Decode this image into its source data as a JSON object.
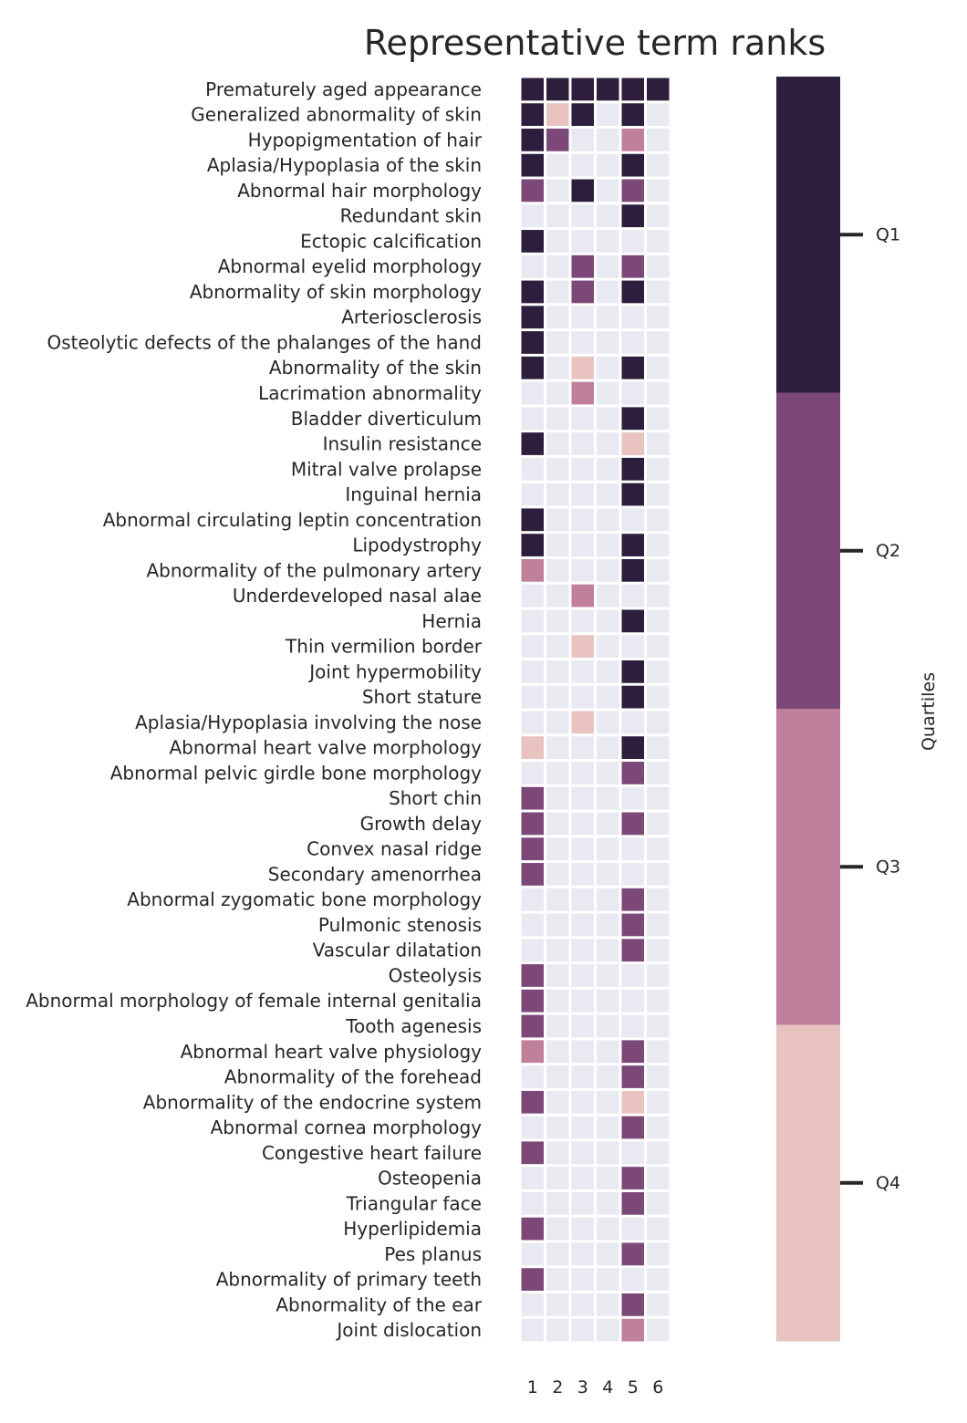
{
  "chart_data": {
    "type": "heatmap",
    "title": "Representative term ranks",
    "xlabel": "",
    "ylabel": "",
    "columns": [
      "1",
      "2",
      "3",
      "4",
      "5",
      "6"
    ],
    "rows": [
      "Prematurely aged appearance",
      "Generalized abnormality of skin",
      "Hypopigmentation of hair",
      "Aplasia/Hypoplasia of the skin",
      "Abnormal hair morphology",
      "Redundant skin",
      "Ectopic calcification",
      "Abnormal eyelid morphology",
      "Abnormality of skin morphology",
      "Arteriosclerosis",
      "Osteolytic defects of the phalanges of the hand",
      "Abnormality of the skin",
      "Lacrimation abnormality",
      "Bladder diverticulum",
      "Insulin resistance",
      "Mitral valve prolapse",
      "Inguinal hernia",
      "Abnormal circulating leptin concentration",
      "Lipodystrophy",
      "Abnormality of the pulmonary artery",
      "Underdeveloped nasal alae",
      "Hernia",
      "Thin vermilion border",
      "Joint hypermobility",
      "Short stature",
      "Aplasia/Hypoplasia involving the nose",
      "Abnormal heart valve morphology",
      "Abnormal pelvic girdle bone morphology",
      "Short chin",
      "Growth delay",
      "Convex nasal ridge",
      "Secondary amenorrhea",
      "Abnormal zygomatic bone morphology",
      "Pulmonic stenosis",
      "Vascular dilatation",
      "Osteolysis",
      "Abnormal morphology of female internal genitalia",
      "Tooth agenesis",
      "Abnormal heart valve physiology",
      "Abnormality of the forehead",
      "Abnormality of the endocrine system",
      "Abnormal cornea morphology",
      "Congestive heart failure",
      "Osteopenia",
      "Triangular face",
      "Hyperlipidemia",
      "Pes planus",
      "Abnormality of primary teeth",
      "Abnormality of the ear",
      "Joint dislocation"
    ],
    "values": [
      [
        1,
        1,
        1,
        1,
        1,
        1
      ],
      [
        1,
        4,
        1,
        0,
        1,
        0
      ],
      [
        1,
        2,
        0,
        0,
        3,
        0
      ],
      [
        1,
        0,
        0,
        0,
        1,
        0
      ],
      [
        2,
        0,
        1,
        0,
        2,
        0
      ],
      [
        0,
        0,
        0,
        0,
        1,
        0
      ],
      [
        1,
        0,
        0,
        0,
        0,
        0
      ],
      [
        0,
        0,
        2,
        0,
        2,
        0
      ],
      [
        1,
        0,
        2,
        0,
        1,
        0
      ],
      [
        1,
        0,
        0,
        0,
        0,
        0
      ],
      [
        1,
        0,
        0,
        0,
        0,
        0
      ],
      [
        1,
        0,
        4,
        0,
        1,
        0
      ],
      [
        0,
        0,
        3,
        0,
        0,
        0
      ],
      [
        0,
        0,
        0,
        0,
        1,
        0
      ],
      [
        1,
        0,
        0,
        0,
        4,
        0
      ],
      [
        0,
        0,
        0,
        0,
        1,
        0
      ],
      [
        0,
        0,
        0,
        0,
        1,
        0
      ],
      [
        1,
        0,
        0,
        0,
        0,
        0
      ],
      [
        1,
        0,
        0,
        0,
        1,
        0
      ],
      [
        3,
        0,
        0,
        0,
        1,
        0
      ],
      [
        0,
        0,
        3,
        0,
        0,
        0
      ],
      [
        0,
        0,
        0,
        0,
        1,
        0
      ],
      [
        0,
        0,
        4,
        0,
        0,
        0
      ],
      [
        0,
        0,
        0,
        0,
        1,
        0
      ],
      [
        0,
        0,
        0,
        0,
        1,
        0
      ],
      [
        0,
        0,
        4,
        0,
        0,
        0
      ],
      [
        4,
        0,
        0,
        0,
        1,
        0
      ],
      [
        0,
        0,
        0,
        0,
        2,
        0
      ],
      [
        2,
        0,
        0,
        0,
        0,
        0
      ],
      [
        2,
        0,
        0,
        0,
        2,
        0
      ],
      [
        2,
        0,
        0,
        0,
        0,
        0
      ],
      [
        2,
        0,
        0,
        0,
        0,
        0
      ],
      [
        0,
        0,
        0,
        0,
        2,
        0
      ],
      [
        0,
        0,
        0,
        0,
        2,
        0
      ],
      [
        0,
        0,
        0,
        0,
        2,
        0
      ],
      [
        2,
        0,
        0,
        0,
        0,
        0
      ],
      [
        2,
        0,
        0,
        0,
        0,
        0
      ],
      [
        2,
        0,
        0,
        0,
        0,
        0
      ],
      [
        3,
        0,
        0,
        0,
        2,
        0
      ],
      [
        0,
        0,
        0,
        0,
        2,
        0
      ],
      [
        2,
        0,
        0,
        0,
        4,
        0
      ],
      [
        0,
        0,
        0,
        0,
        2,
        0
      ],
      [
        2,
        0,
        0,
        0,
        0,
        0
      ],
      [
        0,
        0,
        0,
        0,
        2,
        0
      ],
      [
        0,
        0,
        0,
        0,
        2,
        0
      ],
      [
        2,
        0,
        0,
        0,
        0,
        0
      ],
      [
        0,
        0,
        0,
        0,
        2,
        0
      ],
      [
        2,
        0,
        0,
        0,
        0,
        0
      ],
      [
        0,
        0,
        0,
        0,
        2,
        0
      ],
      [
        0,
        0,
        0,
        0,
        3,
        0
      ]
    ],
    "value_legend": "0 = no rank, 1 = Q1, 2 = Q2, 3 = Q3, 4 = Q4",
    "colors": {
      "empty": "#e9e9f1",
      "Q1": "#2d1e3e",
      "Q2": "#7c4878",
      "Q3": "#c07f9a",
      "Q4": "#e8c3c0"
    },
    "colorbar": {
      "label": "Quartiles",
      "ticks": [
        "Q1",
        "Q2",
        "Q3",
        "Q4"
      ]
    }
  }
}
